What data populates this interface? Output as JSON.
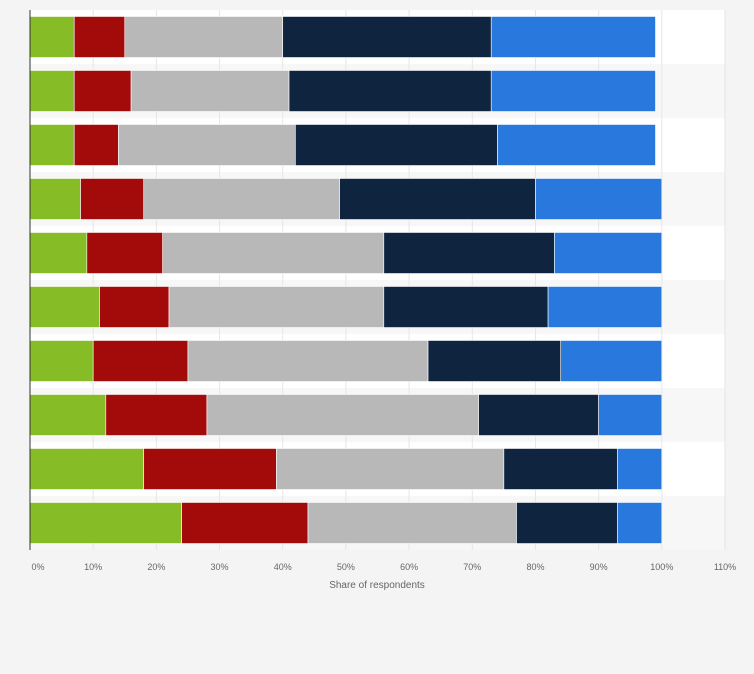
{
  "chart_data": {
    "type": "bar",
    "orientation": "horizontal",
    "stacked": true,
    "xlabel": "Share of respondents",
    "xlim": [
      0,
      110
    ],
    "x_ticks": [
      "0%",
      "10%",
      "20%",
      "30%",
      "40%",
      "50%",
      "60%",
      "70%",
      "80%",
      "90%",
      "100%",
      "110%"
    ],
    "grid": true,
    "legend": "none",
    "colors": [
      "#86bc25",
      "#a30a0a",
      "#b8b8b8",
      "#0f253f",
      "#2878de"
    ],
    "series": [
      {
        "values": [
          7,
          7,
          7,
          8,
          9,
          11,
          10,
          12,
          18,
          24
        ]
      },
      {
        "values": [
          8,
          9,
          7,
          10,
          12,
          11,
          15,
          16,
          21,
          20
        ]
      },
      {
        "values": [
          25,
          25,
          28,
          31,
          35,
          34,
          38,
          43,
          36,
          33
        ]
      },
      {
        "values": [
          33,
          32,
          32,
          31,
          27,
          26,
          21,
          19,
          18,
          16
        ]
      },
      {
        "values": [
          26,
          26,
          25,
          20,
          17,
          18,
          16,
          10,
          7,
          7
        ]
      }
    ]
  }
}
